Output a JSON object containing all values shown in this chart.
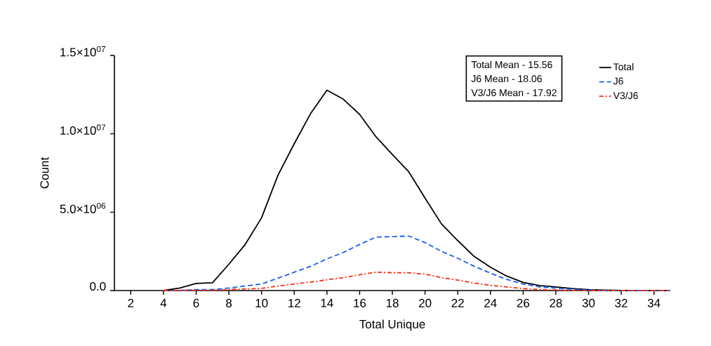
{
  "chart_data": {
    "type": "line",
    "xlabel": "Total Unique",
    "ylabel": "Count",
    "x": [
      4,
      5,
      6,
      7,
      8,
      9,
      10,
      11,
      12,
      13,
      14,
      15,
      16,
      17,
      18,
      19,
      20,
      21,
      22,
      23,
      24,
      25,
      26,
      27,
      28,
      29,
      30,
      31,
      32,
      33,
      34,
      35
    ],
    "series": [
      {
        "name": "Total",
        "color": "#000000",
        "line_style": "solid",
        "values": [
          0,
          160000,
          450000,
          500000,
          1680000,
          2940000,
          4640000,
          7350000,
          9370000,
          11290000,
          12780000,
          12210000,
          11240000,
          9810000,
          8680000,
          7580000,
          5900000,
          4260000,
          3190000,
          2180000,
          1490000,
          920000,
          520000,
          320000,
          230000,
          130000,
          60000,
          30000,
          10000,
          0,
          0,
          0
        ]
      },
      {
        "name": "J6",
        "color": "#1a5ff0",
        "line_style": "dashed",
        "values": [
          0,
          10000,
          60000,
          60000,
          160000,
          290000,
          420000,
          790000,
          1170000,
          1550000,
          2020000,
          2430000,
          2940000,
          3410000,
          3440000,
          3480000,
          3060000,
          2500000,
          2060000,
          1550000,
          1110000,
          710000,
          420000,
          230000,
          160000,
          80000,
          40000,
          20000,
          10000,
          0,
          0,
          0
        ]
      },
      {
        "name": "V3/J6",
        "color": "#ff2a10",
        "line_style": "dashdot",
        "values": [
          0,
          10000,
          20000,
          20000,
          60000,
          100000,
          140000,
          290000,
          420000,
          540000,
          690000,
          820000,
          1010000,
          1170000,
          1140000,
          1140000,
          1050000,
          820000,
          670000,
          480000,
          330000,
          230000,
          130000,
          60000,
          40000,
          10000,
          0,
          0,
          0,
          0,
          0,
          0
        ]
      }
    ],
    "xlim": [
      1,
      35
    ],
    "xticks": [
      2,
      4,
      6,
      8,
      10,
      12,
      14,
      16,
      18,
      20,
      22,
      24,
      26,
      28,
      30,
      32,
      34
    ],
    "ylim": [
      0,
      15000000
    ],
    "yticks": [
      {
        "value": 0,
        "label": "0.0"
      },
      {
        "value": 5000000,
        "label": "5.0×10$^{06}$"
      },
      {
        "value": 10000000,
        "label": "1.0×10$^{07}$"
      },
      {
        "value": 15000000,
        "label": "1.5×10$^{07}$"
      }
    ],
    "annotations": [
      "Total Mean - 15.56",
      "J6 Mean - 18.06",
      "V3/J6 Mean - 17.92"
    ],
    "legend": "top right",
    "grid": false,
    "marker": "none"
  }
}
